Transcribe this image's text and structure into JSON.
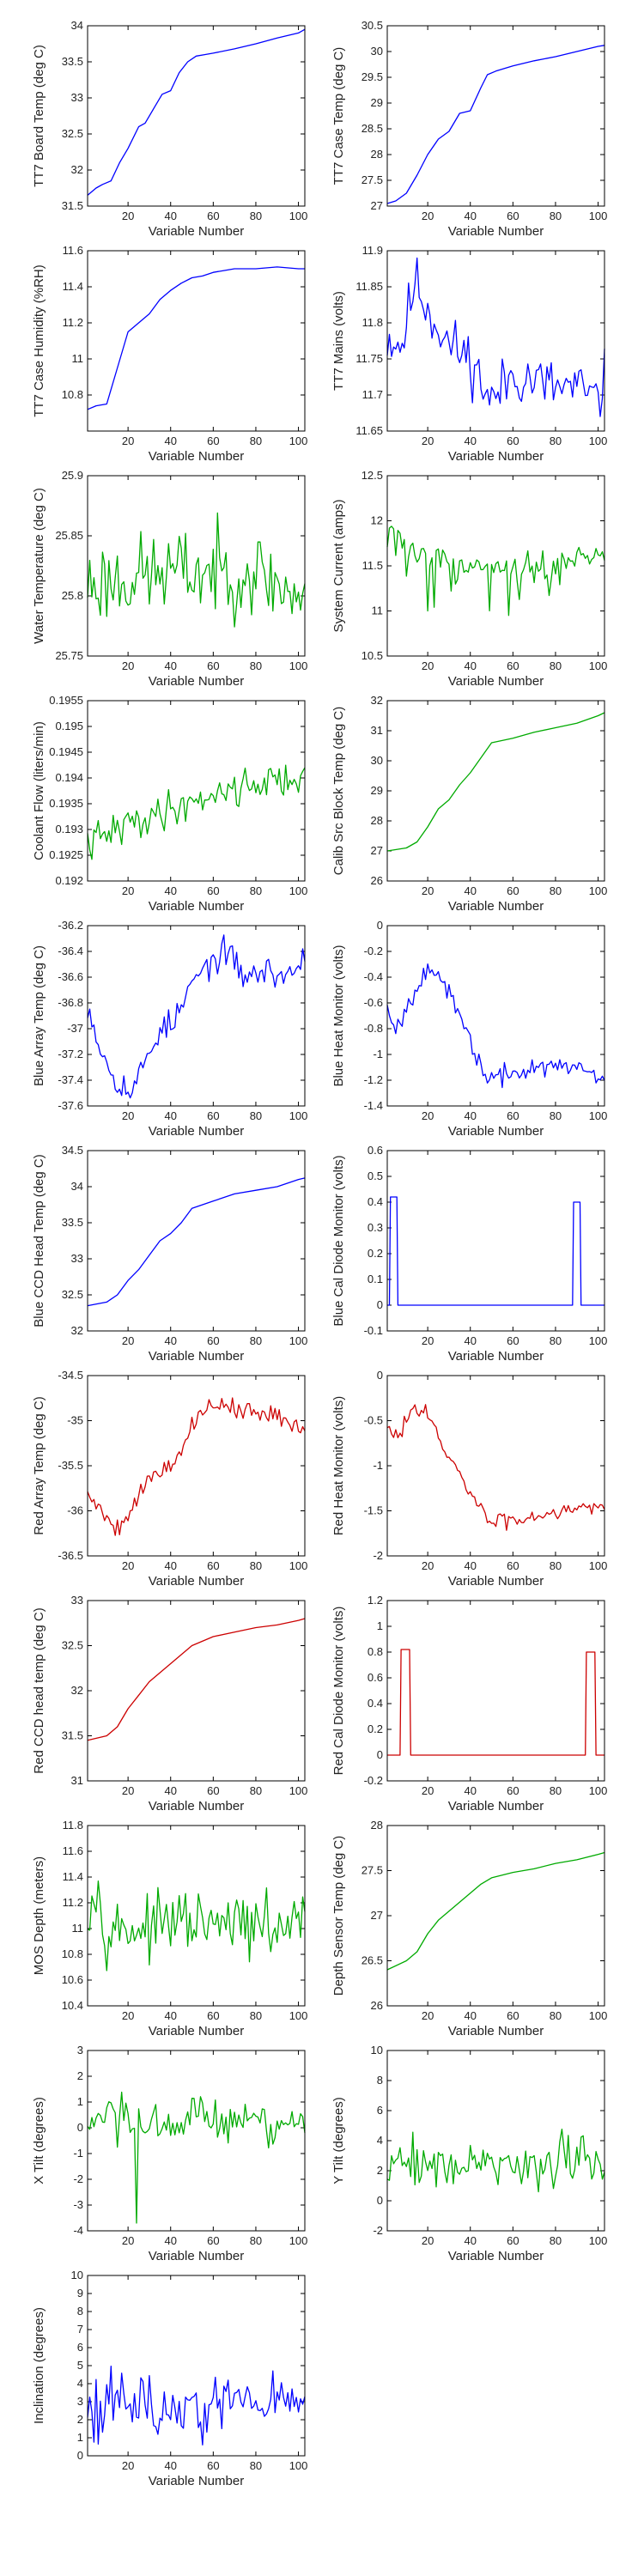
{
  "colors": {
    "blue": "#0000ff",
    "green": "#00aa00",
    "red": "#cc0000"
  },
  "chart_data": [
    {
      "name": "tt7-board-temp",
      "type": "line",
      "color": "blue",
      "xlabel": "Variable Number",
      "ylabel": "TT7 Board Temp (deg C)",
      "xlim": [
        1,
        103
      ],
      "ylim": [
        31.5,
        34
      ],
      "xticks": [
        20,
        40,
        60,
        80,
        100
      ],
      "yticks": [
        "31.5",
        "32",
        "32.5",
        "33",
        "33.5",
        "34"
      ],
      "noise": 0,
      "x": [
        1,
        5,
        8,
        12,
        16,
        20,
        25,
        28,
        32,
        36,
        40,
        44,
        48,
        52,
        56,
        60,
        70,
        80,
        90,
        100,
        103
      ],
      "y": [
        31.65,
        31.75,
        31.8,
        31.85,
        32.1,
        32.3,
        32.6,
        32.65,
        32.85,
        33.05,
        33.1,
        33.35,
        33.5,
        33.58,
        33.6,
        33.62,
        33.68,
        33.75,
        33.83,
        33.9,
        33.95
      ]
    },
    {
      "name": "tt7-case-temp",
      "type": "line",
      "color": "blue",
      "xlabel": "Variable Number",
      "ylabel": "TT7 Case Temp (deg C)",
      "xlim": [
        1,
        103
      ],
      "ylim": [
        27,
        30.5
      ],
      "xticks": [
        20,
        40,
        60,
        80,
        100
      ],
      "yticks": [
        "27",
        "27.5",
        "28",
        "28.5",
        "29",
        "29.5",
        "30",
        "30.5"
      ],
      "noise": 0,
      "x": [
        1,
        5,
        10,
        15,
        20,
        25,
        30,
        35,
        40,
        45,
        48,
        52,
        60,
        70,
        80,
        90,
        100,
        103
      ],
      "y": [
        27.05,
        27.1,
        27.25,
        27.6,
        28.0,
        28.3,
        28.45,
        28.8,
        28.85,
        29.3,
        29.55,
        29.62,
        29.72,
        29.82,
        29.9,
        30.0,
        30.1,
        30.12
      ]
    },
    {
      "name": "tt7-case-humidity",
      "type": "line",
      "color": "blue",
      "xlabel": "Variable Number",
      "ylabel": "TT7 Case Humidity (%RH)",
      "xlim": [
        1,
        103
      ],
      "ylim": [
        10.6,
        11.6
      ],
      "xticks": [
        20,
        40,
        60,
        80,
        100
      ],
      "yticks": [
        "10.8",
        "11",
        "11.2",
        "11.4",
        "11.6"
      ],
      "noise": 0,
      "x": [
        1,
        5,
        10,
        15,
        20,
        25,
        30,
        35,
        40,
        45,
        50,
        55,
        60,
        65,
        70,
        80,
        90,
        100,
        103
      ],
      "y": [
        10.72,
        10.74,
        10.75,
        10.95,
        11.15,
        11.2,
        11.25,
        11.33,
        11.38,
        11.42,
        11.45,
        11.46,
        11.48,
        11.49,
        11.5,
        11.5,
        11.51,
        11.5,
        11.5
      ]
    },
    {
      "name": "tt7-mains",
      "type": "line",
      "color": "blue",
      "xlabel": "Variable Number",
      "ylabel": "TT7 Mains  (volts)",
      "xlim": [
        1,
        103
      ],
      "ylim": [
        11.65,
        11.9
      ],
      "xticks": [
        20,
        40,
        60,
        80,
        100
      ],
      "yticks": [
        "11.65",
        "11.7",
        "11.75",
        "11.8",
        "11.85",
        "11.9"
      ],
      "noise": 0.025,
      "seed": 11,
      "x": [
        1,
        8,
        14,
        20,
        30,
        40,
        50,
        60,
        70,
        80,
        90,
        100,
        103
      ],
      "y": [
        11.78,
        11.77,
        11.86,
        11.82,
        11.77,
        11.75,
        11.69,
        11.73,
        11.72,
        11.71,
        11.71,
        11.69,
        11.72
      ]
    },
    {
      "name": "water-temperature",
      "type": "line",
      "color": "green",
      "xlabel": "Variable Number",
      "ylabel": "Water Temperature (deg C)",
      "xlim": [
        1,
        103
      ],
      "ylim": [
        25.75,
        25.9
      ],
      "xticks": [
        20,
        40,
        60,
        80,
        100
      ],
      "yticks": [
        "25.75",
        "25.8",
        "25.85",
        "25.9"
      ],
      "noise": 0.022,
      "seed": 23,
      "x": [
        1,
        20,
        40,
        60,
        80,
        100,
        103
      ],
      "y": [
        25.81,
        25.815,
        25.82,
        25.82,
        25.82,
        25.8,
        25.79
      ]
    },
    {
      "name": "system-current",
      "type": "line",
      "color": "green",
      "xlabel": "Variable Number",
      "ylabel": "System Current (amps)",
      "xlim": [
        1,
        103
      ],
      "ylim": [
        10.5,
        12.5
      ],
      "xticks": [
        20,
        40,
        60,
        80,
        100
      ],
      "yticks": [
        "10.5",
        "11",
        "11.5",
        "12",
        "12.5"
      ],
      "noise": 0.1,
      "seed": 37,
      "dips": 0.12,
      "x": [
        1,
        6,
        10,
        20,
        40,
        60,
        80,
        100,
        103
      ],
      "y": [
        12.0,
        11.9,
        11.7,
        11.55,
        11.5,
        11.5,
        11.5,
        11.6,
        11.55
      ]
    },
    {
      "name": "coolant-flow",
      "type": "line",
      "color": "green",
      "xlabel": "Variable Number",
      "ylabel": "Coolant Flow (liters/min)",
      "xlim": [
        1,
        103
      ],
      "ylim": [
        0.192,
        0.1955
      ],
      "xticks": [
        20,
        40,
        60,
        80,
        100
      ],
      "yticks": [
        "0.192",
        "0.1925",
        "0.193",
        "0.1935",
        "0.194",
        "0.1945",
        "0.195",
        "0.1955"
      ],
      "noise": 0.00022,
      "seed": 41,
      "x": [
        1,
        20,
        40,
        60,
        80,
        100,
        103
      ],
      "y": [
        0.1927,
        0.1931,
        0.1934,
        0.1937,
        0.1939,
        0.194,
        0.1941
      ]
    },
    {
      "name": "calib-src-block-temp",
      "type": "line",
      "color": "green",
      "xlabel": "Variable Number",
      "ylabel": "Calib Src Block Temp (deg C)",
      "xlim": [
        1,
        103
      ],
      "ylim": [
        26,
        32
      ],
      "xticks": [
        20,
        40,
        60,
        80,
        100
      ],
      "yticks": [
        "26",
        "27",
        "28",
        "29",
        "30",
        "31",
        "32"
      ],
      "noise": 0,
      "x": [
        1,
        10,
        15,
        20,
        25,
        30,
        35,
        40,
        45,
        50,
        60,
        70,
        80,
        90,
        100,
        103
      ],
      "y": [
        27.0,
        27.1,
        27.3,
        27.8,
        28.4,
        28.7,
        29.2,
        29.6,
        30.1,
        30.6,
        30.75,
        30.95,
        31.1,
        31.25,
        31.5,
        31.6
      ]
    },
    {
      "name": "blue-array-temp",
      "type": "line",
      "color": "blue",
      "xlabel": "Variable Number",
      "ylabel": "Blue Array Temp (deg C)",
      "xlim": [
        1,
        103
      ],
      "ylim": [
        -37.6,
        -36.2
      ],
      "xticks": [
        20,
        40,
        60,
        80,
        100
      ],
      "yticks": [
        "-37.6",
        "-37.4",
        "-37.2",
        "-37",
        "-36.8",
        "-36.6",
        "-36.4",
        "-36.2"
      ],
      "noise": 0.07,
      "seed": 53,
      "x": [
        1,
        8,
        15,
        22,
        28,
        35,
        42,
        50,
        58,
        66,
        75,
        85,
        95,
        103
      ],
      "y": [
        -36.8,
        -37.2,
        -37.4,
        -37.5,
        -37.25,
        -37.0,
        -36.95,
        -36.65,
        -36.5,
        -36.4,
        -36.6,
        -36.55,
        -36.6,
        -36.45
      ]
    },
    {
      "name": "blue-heat-monitor",
      "type": "line",
      "color": "blue",
      "xlabel": "Variable Number",
      "ylabel": "Blue Heat Monitor (volts)",
      "xlim": [
        1,
        103
      ],
      "ylim": [
        -1.4,
        0
      ],
      "xticks": [
        20,
        40,
        60,
        80,
        100
      ],
      "yticks": [
        "-1.4",
        "-1.2",
        "-1",
        "-0.8",
        "-0.6",
        "-0.4",
        "-0.2",
        "0"
      ],
      "noise": 0.05,
      "seed": 67,
      "x": [
        1,
        5,
        10,
        15,
        20,
        25,
        30,
        35,
        40,
        45,
        50,
        60,
        70,
        80,
        90,
        100,
        103
      ],
      "y": [
        -0.6,
        -0.8,
        -0.65,
        -0.45,
        -0.3,
        -0.4,
        -0.55,
        -0.7,
        -0.9,
        -1.1,
        -1.2,
        -1.15,
        -1.1,
        -1.1,
        -1.1,
        -1.15,
        -1.2
      ]
    },
    {
      "name": "blue-ccd-head-temp",
      "type": "line",
      "color": "blue",
      "xlabel": "Variable Number",
      "ylabel": "Blue CCD Head Temp (deg C)",
      "xlim": [
        1,
        103
      ],
      "ylim": [
        32,
        34.5
      ],
      "xticks": [
        20,
        40,
        60,
        80,
        100
      ],
      "yticks": [
        "32",
        "32.5",
        "33",
        "33.5",
        "34",
        "34.5"
      ],
      "noise": 0,
      "x": [
        1,
        10,
        15,
        20,
        25,
        30,
        35,
        40,
        45,
        50,
        60,
        70,
        80,
        90,
        100,
        103
      ],
      "y": [
        32.35,
        32.4,
        32.5,
        32.7,
        32.85,
        33.05,
        33.25,
        33.35,
        33.5,
        33.7,
        33.8,
        33.9,
        33.95,
        34.0,
        34.1,
        34.12
      ]
    },
    {
      "name": "blue-cal-diode-monitor",
      "type": "line",
      "color": "blue",
      "xlabel": "Variable Number",
      "ylabel": "Blue Cal Diode Monitor (volts)",
      "xlim": [
        1,
        103
      ],
      "ylim": [
        -0.1,
        0.6
      ],
      "xticks": [
        20,
        40,
        60,
        80,
        100
      ],
      "yticks": [
        "-0.1",
        "0",
        "0.1",
        "0.2",
        "0.3",
        "0.4",
        "0.5",
        "0.6"
      ],
      "noise": 0,
      "x": [
        1,
        2,
        2.5,
        5.5,
        6,
        88,
        88.5,
        91.5,
        92,
        103
      ],
      "y": [
        0,
        0,
        0.42,
        0.42,
        0,
        0,
        0.4,
        0.4,
        0,
        0
      ]
    },
    {
      "name": "red-array-temp",
      "type": "line",
      "color": "red",
      "xlabel": "Variable Number",
      "ylabel": "Red Array Temp (deg C)",
      "xlim": [
        1,
        103
      ],
      "ylim": [
        -36.5,
        -34.5
      ],
      "xticks": [
        20,
        40,
        60,
        80,
        100
      ],
      "yticks": [
        "-36.5",
        "-36",
        "-35.5",
        "-35",
        "-34.5"
      ],
      "noise": 0.07,
      "seed": 79,
      "x": [
        1,
        8,
        15,
        22,
        28,
        35,
        42,
        50,
        58,
        66,
        75,
        85,
        95,
        103
      ],
      "y": [
        -35.8,
        -36.0,
        -36.2,
        -35.95,
        -35.7,
        -35.55,
        -35.45,
        -35.05,
        -34.85,
        -34.8,
        -34.9,
        -34.95,
        -35.0,
        -35.05
      ]
    },
    {
      "name": "red-heat-monitor",
      "type": "line",
      "color": "red",
      "xlabel": "Variable Number",
      "ylabel": "Red Heat Monitor (volts)",
      "xlim": [
        1,
        103
      ],
      "ylim": [
        -2,
        0
      ],
      "xticks": [
        20,
        40,
        60,
        80,
        100
      ],
      "yticks": [
        "-2",
        "-1.5",
        "-1",
        "-0.5",
        "0"
      ],
      "noise": 0.06,
      "seed": 83,
      "x": [
        1,
        5,
        10,
        15,
        20,
        25,
        30,
        35,
        40,
        45,
        50,
        60,
        70,
        80,
        90,
        100,
        103
      ],
      "y": [
        -0.6,
        -0.7,
        -0.5,
        -0.3,
        -0.4,
        -0.7,
        -0.95,
        -1.1,
        -1.3,
        -1.5,
        -1.62,
        -1.6,
        -1.55,
        -1.5,
        -1.45,
        -1.45,
        -1.48
      ]
    },
    {
      "name": "red-ccd-head-temp",
      "type": "line",
      "color": "red",
      "xlabel": "Variable Number",
      "ylabel": "Red CCD head temp (deg C)",
      "xlim": [
        1,
        103
      ],
      "ylim": [
        31,
        33
      ],
      "xticks": [
        20,
        40,
        60,
        80,
        100
      ],
      "yticks": [
        "31",
        "31.5",
        "32",
        "32.5",
        "33"
      ],
      "noise": 0,
      "x": [
        1,
        10,
        15,
        20,
        25,
        30,
        35,
        40,
        45,
        50,
        60,
        70,
        80,
        90,
        100,
        103
      ],
      "y": [
        31.45,
        31.5,
        31.6,
        31.8,
        31.95,
        32.1,
        32.2,
        32.3,
        32.4,
        32.5,
        32.6,
        32.65,
        32.7,
        32.73,
        32.78,
        32.8
      ]
    },
    {
      "name": "red-cal-diode-monitor",
      "type": "line",
      "color": "red",
      "xlabel": "Variable Number",
      "ylabel": "Red Cal Diode Monitor (volts)",
      "xlim": [
        1,
        103
      ],
      "ylim": [
        -0.2,
        1.2
      ],
      "xticks": [
        20,
        40,
        60,
        80,
        100
      ],
      "yticks": [
        "-0.2",
        "0",
        "0.2",
        "0.4",
        "0.6",
        "0.8",
        "1",
        "1.2"
      ],
      "noise": 0,
      "x": [
        1,
        7,
        7.5,
        11.5,
        12,
        94,
        94.5,
        98.5,
        99,
        103
      ],
      "y": [
        0,
        0,
        0.82,
        0.82,
        0,
        0,
        0.8,
        0.8,
        0,
        0
      ]
    },
    {
      "name": "mos-depth",
      "type": "line",
      "color": "green",
      "xlabel": "Variable Number",
      "ylabel": "MOS Depth  (meters)",
      "xlim": [
        1,
        103
      ],
      "ylim": [
        10.4,
        11.8
      ],
      "xticks": [
        20,
        40,
        60,
        80,
        100
      ],
      "yticks": [
        "10.4",
        "10.6",
        "10.8",
        "11",
        "11.2",
        "11.4",
        "11.6",
        "11.8"
      ],
      "noise": 0.14,
      "seed": 97,
      "x": [
        1,
        5,
        10,
        20,
        30,
        40,
        50,
        60,
        70,
        80,
        90,
        100,
        103
      ],
      "y": [
        11.2,
        11.3,
        11.0,
        11.0,
        11.0,
        11.05,
        11.05,
        11.0,
        11.05,
        11.0,
        11.0,
        11.05,
        11.1
      ]
    },
    {
      "name": "depth-sensor-temp",
      "type": "line",
      "color": "green",
      "xlabel": "Variable Number",
      "ylabel": "Depth Sensor Temp (deg C)",
      "xlim": [
        1,
        103
      ],
      "ylim": [
        26,
        28
      ],
      "xticks": [
        20,
        40,
        60,
        80,
        100
      ],
      "yticks": [
        "26",
        "26.5",
        "27",
        "27.5",
        "28"
      ],
      "noise": 0,
      "x": [
        1,
        10,
        15,
        20,
        25,
        30,
        35,
        40,
        45,
        50,
        60,
        70,
        80,
        90,
        100,
        103
      ],
      "y": [
        26.4,
        26.5,
        26.6,
        26.8,
        26.95,
        27.05,
        27.15,
        27.25,
        27.35,
        27.42,
        27.48,
        27.52,
        27.58,
        27.62,
        27.68,
        27.7
      ]
    },
    {
      "name": "x-tilt",
      "type": "line",
      "color": "green",
      "xlabel": "Variable Number",
      "ylabel": "X Tilt  (degrees)",
      "xlim": [
        1,
        103
      ],
      "ylim": [
        -4,
        3
      ],
      "xticks": [
        20,
        40,
        60,
        80,
        100
      ],
      "yticks": [
        "-4",
        "-3",
        "-2",
        "-1",
        "0",
        "1",
        "2",
        "3"
      ],
      "noise": 0.6,
      "seed": 103,
      "spike": [
        24,
        -3.7
      ],
      "x": [
        1,
        10,
        20,
        30,
        40,
        50,
        60,
        70,
        80,
        90,
        100,
        103
      ],
      "y": [
        0.3,
        0.1,
        0,
        0.1,
        0.2,
        0.3,
        0.2,
        0.3,
        0.3,
        0.2,
        0.4,
        0.4
      ]
    },
    {
      "name": "y-tilt",
      "type": "line",
      "color": "green",
      "xlabel": "Variable Number",
      "ylabel": "Y Tilt  (degrees)",
      "xlim": [
        1,
        103
      ],
      "ylim": [
        -2,
        10
      ],
      "xticks": [
        20,
        40,
        60,
        80,
        100
      ],
      "yticks": [
        "-2",
        "0",
        "2",
        "4",
        "6",
        "8",
        "10"
      ],
      "noise": 1.1,
      "seed": 109,
      "x": [
        1,
        10,
        20,
        30,
        40,
        50,
        60,
        70,
        80,
        90,
        100,
        103
      ],
      "y": [
        2.5,
        2.5,
        2.6,
        2.4,
        2.3,
        2.2,
        2.4,
        2.5,
        2.6,
        2.5,
        2.6,
        2.6
      ]
    },
    {
      "name": "inclination",
      "type": "line",
      "color": "blue",
      "xlabel": "Variable Number",
      "ylabel": "Inclination  (degrees)",
      "xlim": [
        1,
        103
      ],
      "ylim": [
        0,
        10
      ],
      "xticks": [
        20,
        40,
        60,
        80,
        100
      ],
      "yticks": [
        "0",
        "1",
        "2",
        "3",
        "4",
        "5",
        "6",
        "7",
        "8",
        "9",
        "10"
      ],
      "noise": 1.1,
      "seed": 113,
      "x": [
        1,
        10,
        20,
        30,
        40,
        50,
        60,
        70,
        80,
        90,
        100,
        103
      ],
      "y": [
        3.0,
        2.8,
        3.2,
        2.6,
        2.6,
        2.5,
        2.8,
        3.0,
        3.1,
        3.0,
        3.0,
        3.1
      ]
    }
  ]
}
